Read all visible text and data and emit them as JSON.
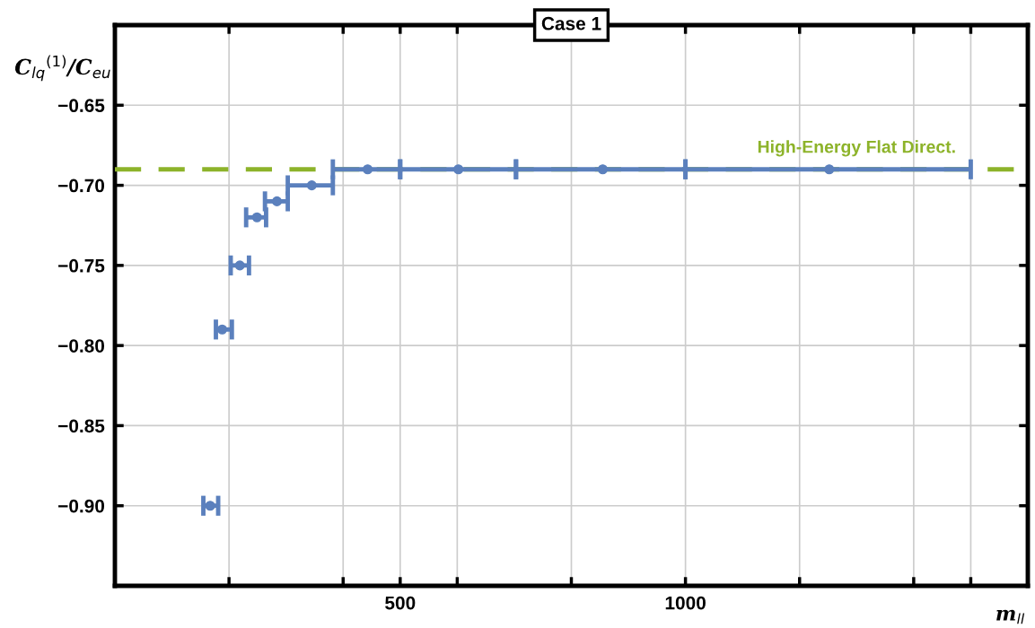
{
  "chart_data": {
    "type": "scatter",
    "title": "Case 1",
    "xlabel": "m$_{ll}$",
    "ylabel": "C$_{lq}$$^{(1)}$/C$_{eu}$",
    "x": [
      167,
      188,
      219,
      249,
      284,
      345,
      443,
      602,
      855,
      1252
    ],
    "series": [
      {
        "color": "#5b80bd",
        "values": [
          -0.9,
          -0.79,
          -0.75,
          -0.72,
          -0.71,
          -0.7,
          -0.69,
          -0.69,
          -0.69,
          -0.69
        ],
        "xerrors": [
          [
            155,
            181
          ],
          [
            177,
            205
          ],
          [
            203,
            235
          ],
          [
            230,
            265
          ],
          [
            263,
            303
          ],
          [
            303,
            382
          ],
          [
            382,
            500
          ],
          [
            500,
            703
          ],
          [
            703,
            1000
          ],
          [
            1000,
            1500
          ]
        ]
      }
    ],
    "marker": "circle",
    "xlim": [
      0,
      1600
    ],
    "xticks": [
      {
        "value": 200,
        "label": null
      },
      {
        "value": 400,
        "label": null
      },
      500,
      {
        "value": 600,
        "label": null
      },
      {
        "value": 800,
        "label": null
      },
      1000,
      {
        "value": 1200,
        "label": null
      },
      {
        "value": 1400,
        "label": null
      },
      {
        "value": 1500,
        "label": null
      }
    ],
    "ylim": [
      -0.95,
      -0.6
    ],
    "yticks": [
      {
        "value": -0.9,
        "label": "−0.90"
      },
      {
        "value": -0.85,
        "label": "−0.85"
      },
      {
        "value": -0.8,
        "label": "−0.80"
      },
      {
        "value": -0.75,
        "label": "−0.75"
      },
      {
        "value": -0.7,
        "label": "−0.70"
      },
      {
        "value": -0.65,
        "label": "−0.65"
      }
    ],
    "grid": true,
    "ref_lines": [
      {
        "axis": "y",
        "value": -0.69,
        "label": "High-Energy Flat Direct.",
        "color": "#8db32a",
        "line_style": "dashed"
      }
    ]
  }
}
